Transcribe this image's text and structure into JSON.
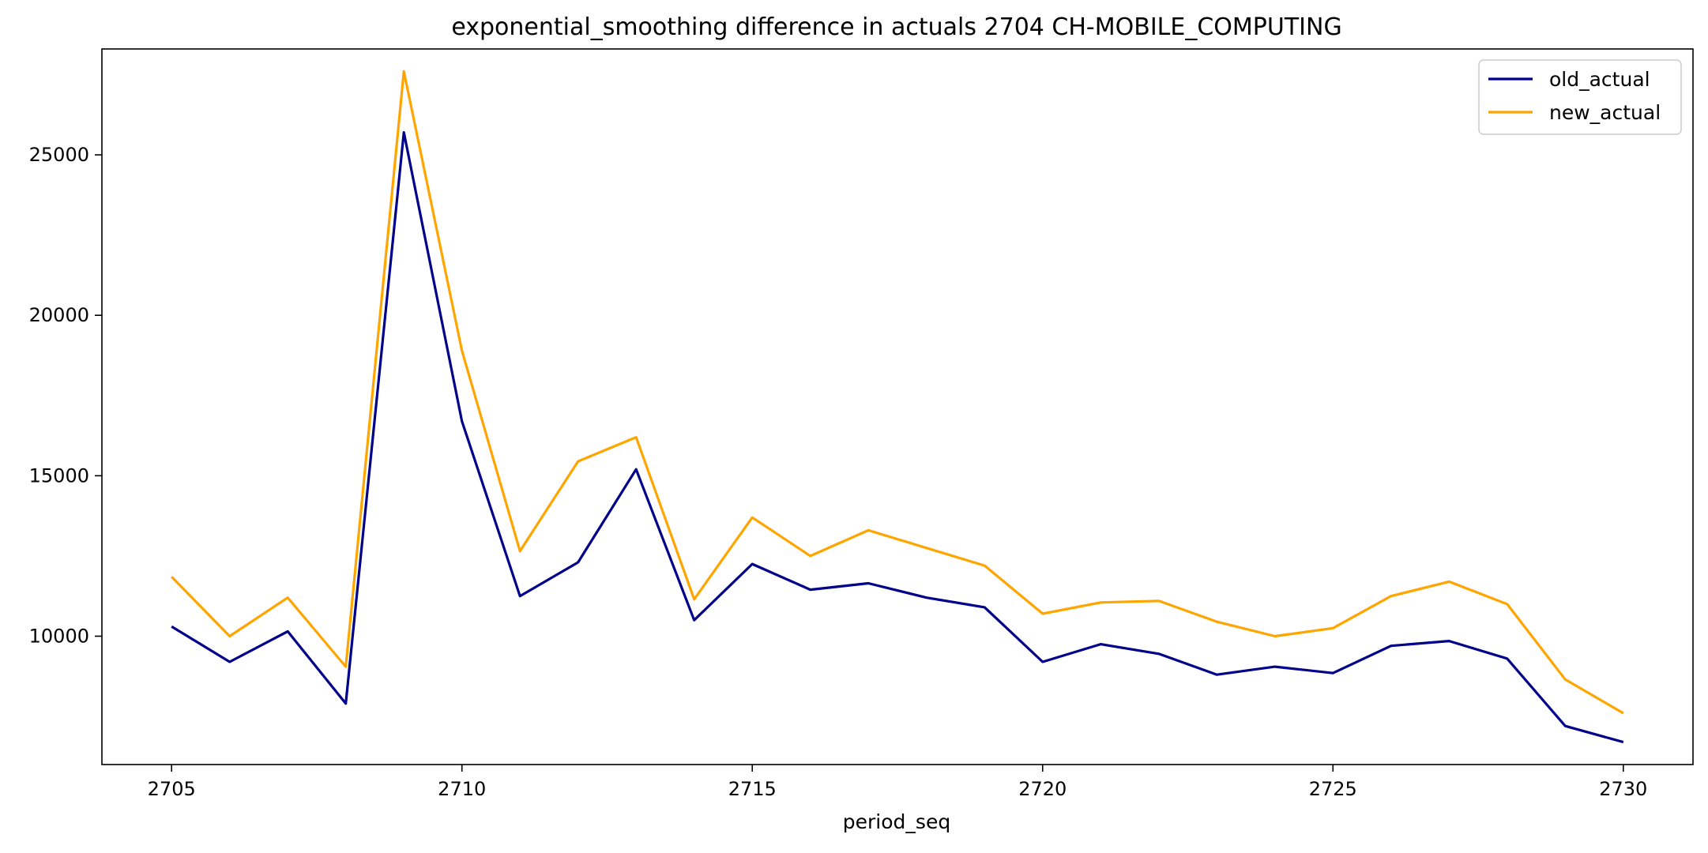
{
  "chart_data": {
    "type": "line",
    "title": "exponential_smoothing difference in actuals 2704 CH-MOBILE_COMPUTING",
    "xlabel": "period_seq",
    "ylabel": "",
    "x": [
      2705,
      2706,
      2707,
      2708,
      2709,
      2710,
      2711,
      2712,
      2713,
      2714,
      2715,
      2716,
      2717,
      2718,
      2719,
      2720,
      2721,
      2722,
      2723,
      2724,
      2725,
      2726,
      2727,
      2728,
      2729,
      2730
    ],
    "xlim": [
      2703.8,
      2731.2
    ],
    "ylim": [
      6000,
      28300
    ],
    "xticks": [
      2705,
      2710,
      2715,
      2720,
      2725,
      2730
    ],
    "yticks": [
      10000,
      15000,
      20000,
      25000
    ],
    "grid": false,
    "legend_position": "top-right",
    "series": [
      {
        "name": "old_actual",
        "color": "#00008b",
        "values": [
          10300,
          9200,
          10150,
          7900,
          25700,
          16700,
          11250,
          12300,
          15200,
          10500,
          12250,
          11450,
          11650,
          11200,
          10900,
          9200,
          9750,
          9450,
          8800,
          9050,
          8850,
          9700,
          9850,
          9300,
          7200,
          6700
        ]
      },
      {
        "name": "new_actual",
        "color": "#ffa500",
        "values": [
          11850,
          10000,
          11200,
          9050,
          27600,
          18900,
          12650,
          15450,
          16200,
          11150,
          13700,
          12500,
          13300,
          12750,
          12200,
          10700,
          11050,
          11100,
          10450,
          10000,
          10250,
          11250,
          11700,
          11000,
          8650,
          7600
        ]
      }
    ]
  }
}
